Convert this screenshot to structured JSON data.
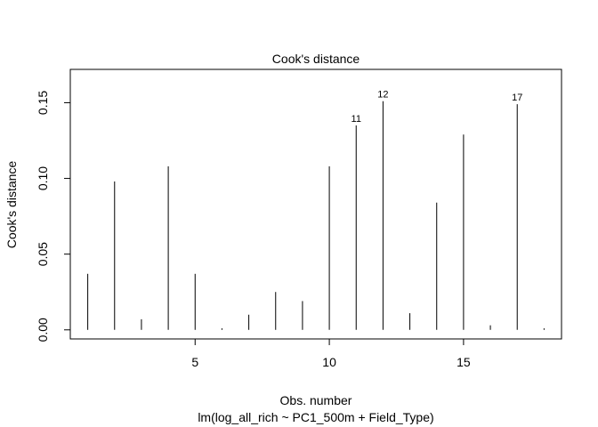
{
  "chart_data": {
    "type": "bar",
    "title": "Cook's distance",
    "xlabel": "Obs. number",
    "subtitle": "lm(log_all_rich ~ PC1_500m + Field_Type)",
    "ylabel": "Cook's distance",
    "xlim": [
      0.35,
      18.65
    ],
    "ylim": [
      -0.006,
      0.172
    ],
    "x_ticks": [
      5,
      10,
      15
    ],
    "x_tick_labels": [
      "5",
      "10",
      "15"
    ],
    "y_ticks": [
      0.0,
      0.05,
      0.1,
      0.15
    ],
    "y_tick_labels": [
      "0.00",
      "0.05",
      "0.10",
      "0.15"
    ],
    "x": [
      1,
      2,
      3,
      4,
      5,
      6,
      7,
      8,
      9,
      10,
      11,
      12,
      13,
      14,
      15,
      16,
      17,
      18
    ],
    "values": [
      0.037,
      0.098,
      0.007,
      0.108,
      0.037,
      0.001,
      0.01,
      0.025,
      0.019,
      0.108,
      0.135,
      0.151,
      0.011,
      0.084,
      0.129,
      0.003,
      0.149,
      0.001
    ],
    "annotations": [
      {
        "x": 11,
        "label": "11"
      },
      {
        "x": 12,
        "label": "12"
      },
      {
        "x": 17,
        "label": "17"
      }
    ]
  }
}
